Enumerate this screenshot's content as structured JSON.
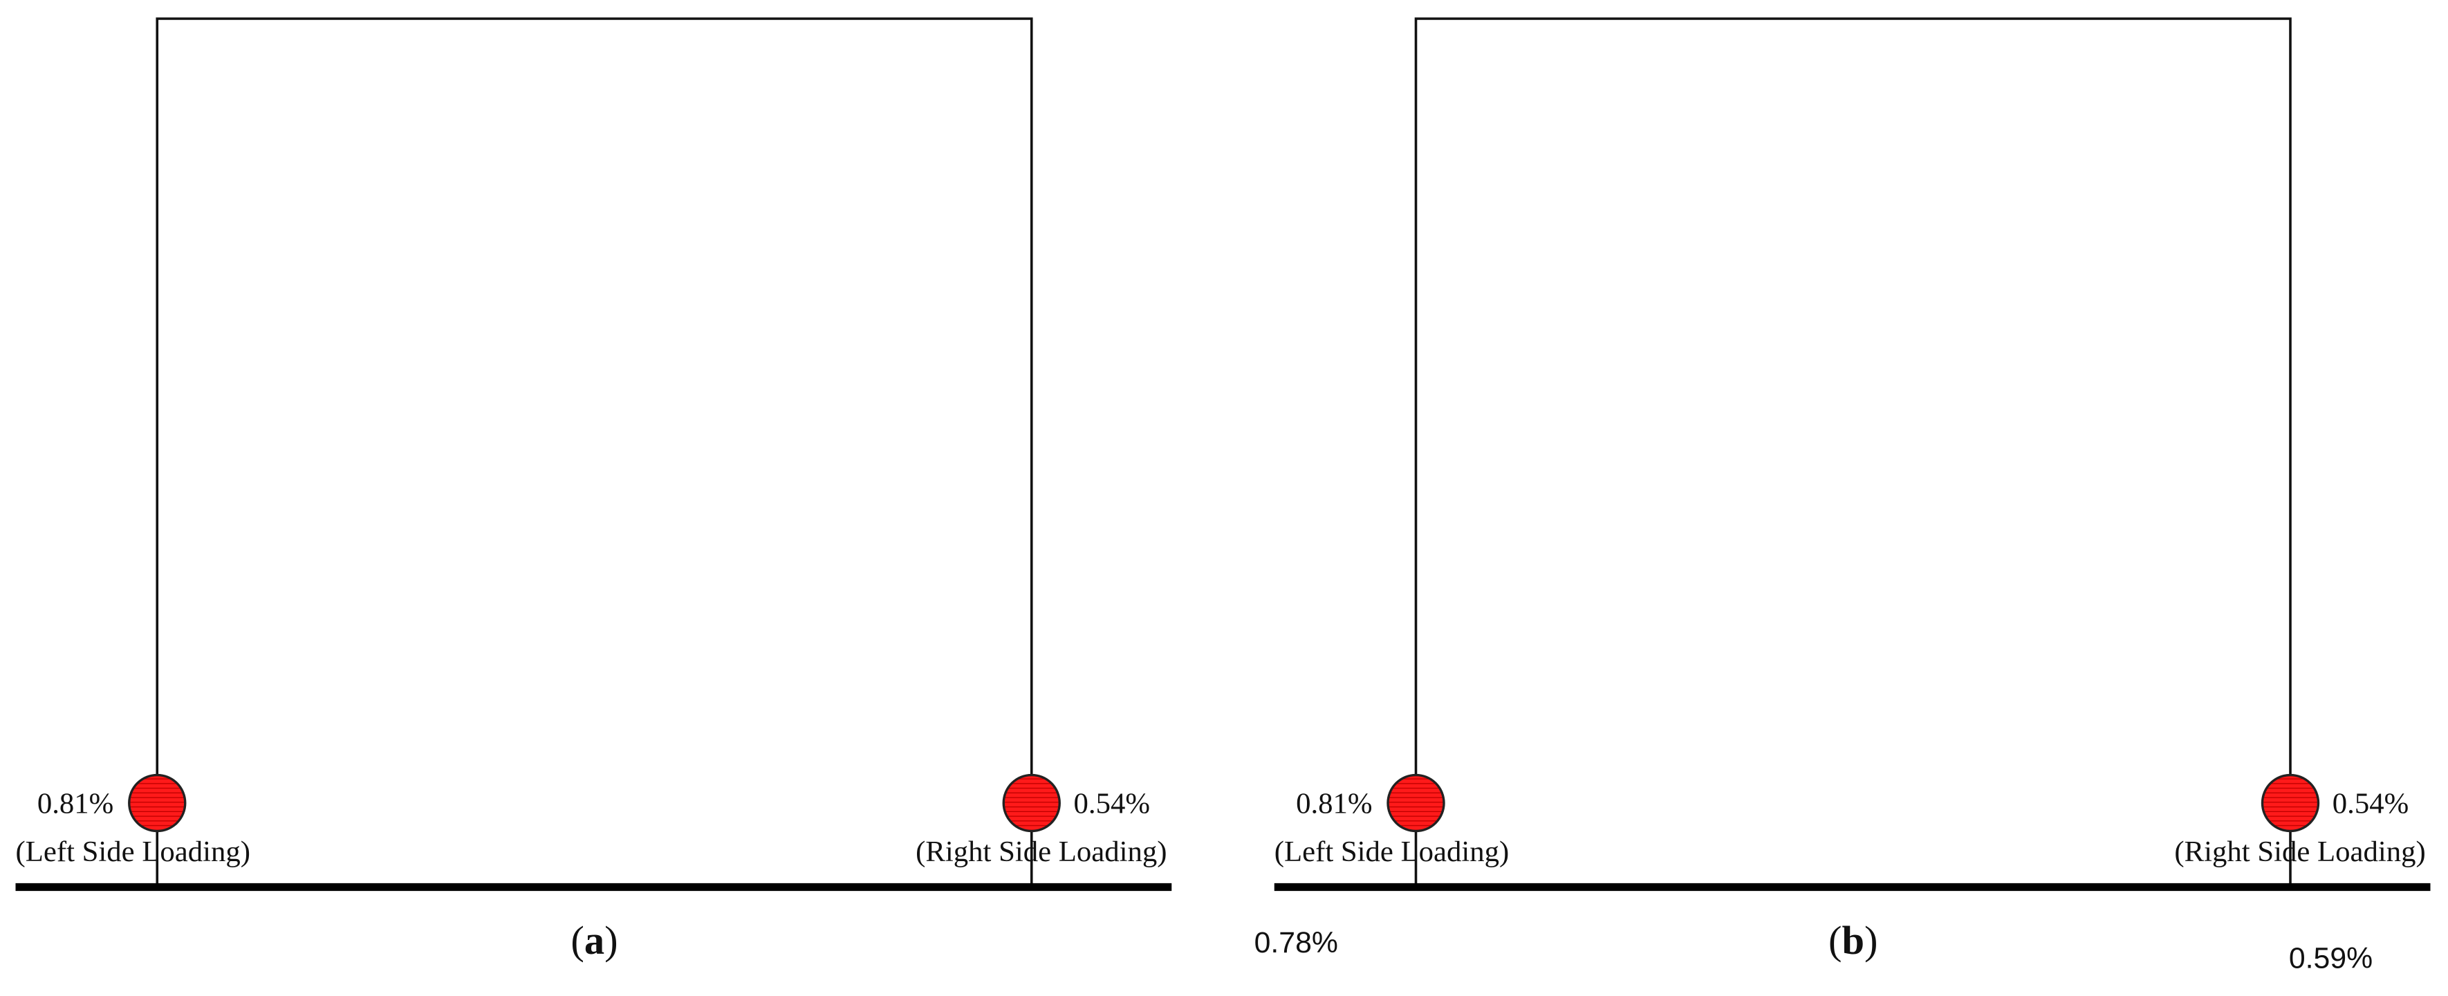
{
  "panels": [
    {
      "label": {
        "open": "(",
        "letter": "a",
        "close": ")"
      },
      "left": {
        "value": "0.81%",
        "caption": "(Left Side Loading)"
      },
      "right": {
        "value": "0.54%",
        "caption": "(Right Side Loading)"
      }
    },
    {
      "label": {
        "open": "(",
        "letter": "b",
        "close": ")"
      },
      "left": {
        "value": "0.81%",
        "caption": "(Left Side Loading)"
      },
      "right": {
        "value": "0.54%",
        "caption": "(Right Side Loading)"
      }
    }
  ],
  "extra_labels": [
    "0.78%",
    "0.59%"
  ]
}
